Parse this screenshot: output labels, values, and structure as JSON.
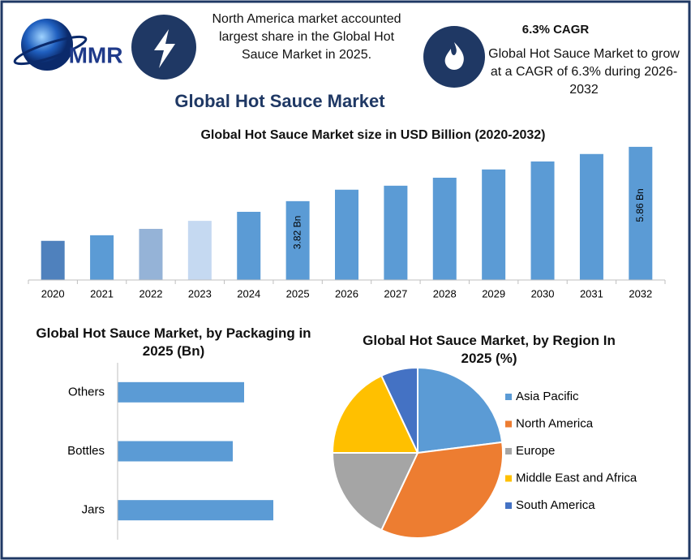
{
  "header": {
    "logo": "MMR",
    "highlight": "North America market accounted largest share in the Global Hot Sauce Market in 2025.",
    "cagr_title": "6.3% CAGR",
    "cagr_text": "Global Hot Sauce Market to grow at a CAGR of 6.3% during 2026-2032",
    "title": "Global Hot Sauce Market"
  },
  "chart_data": [
    {
      "type": "bar",
      "title": "Global Hot Sauce Market size in USD Billion (2020-2032)",
      "categories": [
        "2020",
        "2021",
        "2022",
        "2023",
        "2024",
        "2025",
        "2026",
        "2027",
        "2028",
        "2029",
        "2030",
        "2031",
        "2032"
      ],
      "values": [
        2.33,
        2.54,
        2.78,
        3.08,
        3.42,
        3.82,
        4.25,
        4.4,
        4.7,
        5.01,
        5.31,
        5.59,
        5.86
      ],
      "value_labels": [
        null,
        null,
        null,
        null,
        null,
        "3.82 Bn",
        null,
        null,
        null,
        null,
        null,
        null,
        "5.86 Bn"
      ],
      "colors": [
        "#4f81bd",
        "#5b9bd5",
        "#95b3d7",
        "#c5d9f1",
        "#5b9bd5",
        "#5b9bd5",
        "#5b9bd5",
        "#5b9bd5",
        "#5b9bd5",
        "#5b9bd5",
        "#5b9bd5",
        "#5b9bd5",
        "#5b9bd5"
      ],
      "ylim": [
        0.86,
        6.04
      ]
    },
    {
      "type": "bar",
      "horizontal": true,
      "title": "Global Hot Sauce Market, by Packaging in 2025 (Bn)",
      "categories": [
        "Others",
        "Bottles",
        "Jars"
      ],
      "values": [
        0.78,
        0.71,
        0.96
      ],
      "color": "#5b9bd5",
      "xlim": [
        0,
        1.2
      ]
    },
    {
      "type": "pie",
      "title": "Global Hot Sauce Market, by Region In 2025 (%)",
      "categories": [
        "Asia Pacific",
        "North America",
        "Europe",
        "Middle East and Africa",
        "South America"
      ],
      "values": [
        23,
        34,
        18,
        18,
        7
      ],
      "colors": [
        "#5b9bd5",
        "#ed7d31",
        "#a5a5a5",
        "#ffc000",
        "#4472c4"
      ],
      "legend": "right"
    }
  ]
}
